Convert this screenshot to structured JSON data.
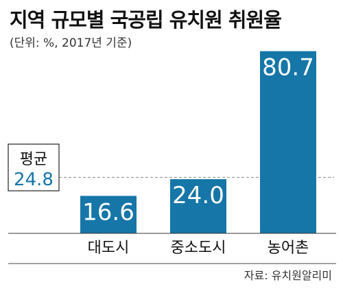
{
  "chart_data": {
    "type": "bar",
    "title": "지역 규모별 국공립 유치원 취원율",
    "subtitle": "(단위: %, 2017년 기준)",
    "categories": [
      "대도시",
      "중소도시",
      "농어촌"
    ],
    "values": [
      16.6,
      24.0,
      80.7
    ],
    "value_labels": [
      "16.6",
      "24.0",
      "80.7"
    ],
    "ylim": [
      0,
      83
    ],
    "average": {
      "label": "평균",
      "value": 24.8,
      "value_label": "24.8"
    },
    "grid": false,
    "bar_color": "#1676a8",
    "average_value_color": "#1676a8",
    "source": "자료: 유치원알리미"
  }
}
